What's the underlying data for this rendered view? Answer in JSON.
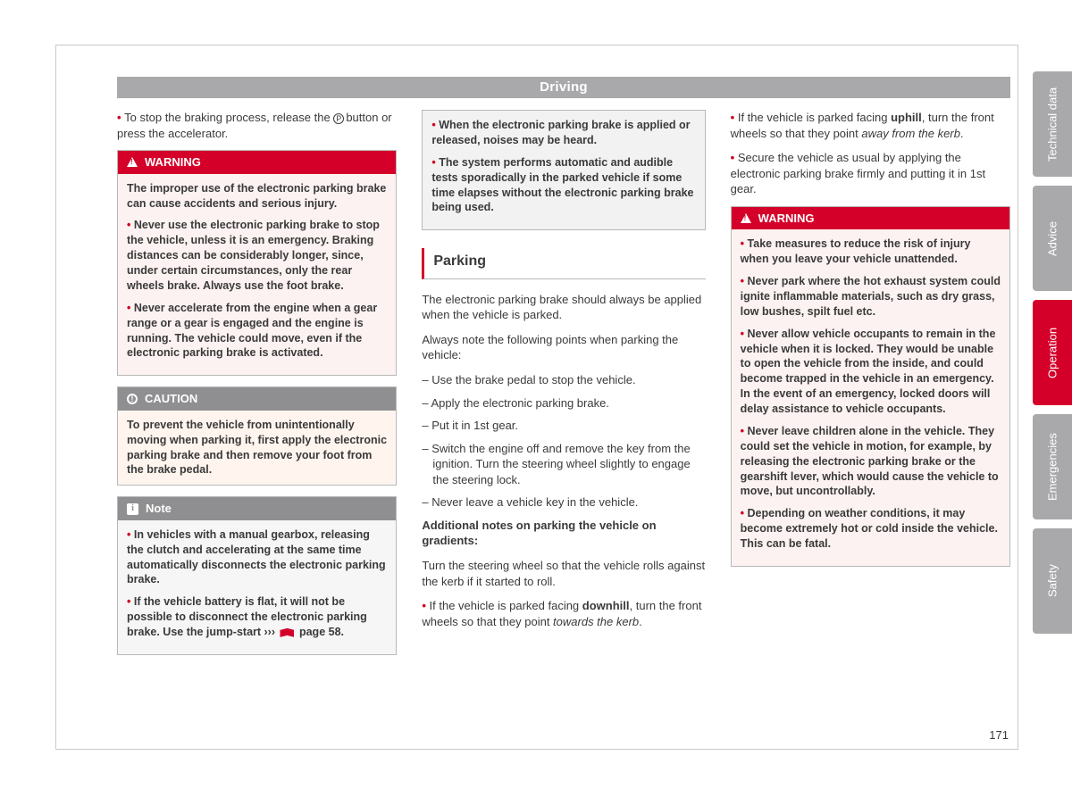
{
  "header": {
    "title": "Driving"
  },
  "page_number": "171",
  "colors": {
    "warn_bg": "#d4002a",
    "gray_bg": "#a9a9ab",
    "bullet": "#d0021b"
  },
  "col1": {
    "intro_bullet": "To stop the braking process, release the ",
    "intro_tail": "button or press the accelerator.",
    "warn": {
      "label": "WARNING",
      "lead": "The improper use of the electronic parking brake can cause accidents and serious injury.",
      "items": [
        "Never use the electronic parking brake to stop the vehicle, unless it is an emergency. Braking distances can be considerably longer, since, under certain circumstances, only the rear wheels brake. Always use the foot brake.",
        "Never accelerate from the engine when a gear range or a gear is engaged and the engine is running. The vehicle could move, even if the electronic parking brake is activated."
      ]
    },
    "caution": {
      "label": "CAUTION",
      "text": "To prevent the vehicle from unintentionally moving when parking it, first apply the electronic parking brake and then remove your foot from the brake pedal."
    },
    "note": {
      "label": "Note",
      "items": [
        "In vehicles with a manual gearbox, releasing the clutch and accelerating at the same time automatically disconnects the electronic parking brake.",
        "If the vehicle battery is flat, it will not be possible to disconnect the electronic parking brake. Use the jump-start ››› "
      ],
      "page_ref": "page 58"
    }
  },
  "col2": {
    "graybox": [
      "When the electronic parking brake is applied or released, noises may be heard.",
      "The system performs automatic and audible tests sporadically in the parked vehicle if some time elapses without the electronic parking brake being used."
    ],
    "section_title": "Parking",
    "p1": "The electronic parking brake should always be applied when the vehicle is parked.",
    "p2": "Always note the following points when parking the vehicle:",
    "steps": [
      "Use the brake pedal to stop the vehicle.",
      "Apply the electronic parking brake.",
      "Put it in 1st gear.",
      "Switch the engine off and remove the key from the ignition. Turn the steering wheel slightly to engage the steering lock.",
      "Never leave a vehicle key in the vehicle."
    ],
    "sub_bold": "Additional notes on parking the vehicle on gradients:",
    "p3": "Turn the steering wheel so that the vehicle rolls against the kerb if it started to roll.",
    "downhill_pre": "If the vehicle is parked facing ",
    "downhill_word": "downhill",
    "downhill_post": ", turn the front wheels so that they point ",
    "downhill_italic": "towards the kerb",
    "dot": "."
  },
  "col3": {
    "uphill_pre": "If the vehicle is parked facing ",
    "uphill_word": "uphill",
    "uphill_post": ", turn the front wheels so that they point ",
    "uphill_italic": "away from the kerb",
    "dot": ".",
    "secure": "Secure the vehicle as usual by applying the electronic parking brake firmly and putting it in 1st gear.",
    "warn": {
      "label": "WARNING",
      "items": [
        "Take measures to reduce the risk of injury when you leave your vehicle unattended.",
        "Never park where the hot exhaust system could ignite inflammable materials, such as dry grass, low bushes, spilt fuel etc.",
        "Never allow vehicle occupants to remain in the vehicle when it is locked. They would be unable to open the vehicle from the inside, and could become trapped in the vehicle in an emergency. In the event of an emergency, locked doors will delay assistance to vehicle occupants.",
        "Never leave children alone in the vehicle. They could set the vehicle in motion, for example, by releasing the electronic parking brake or the gearshift lever, which would cause the vehicle to move, but uncontrollably.",
        "Depending on weather conditions, it may become extremely hot or cold inside the vehicle. This can be fatal."
      ]
    }
  },
  "tabs": [
    {
      "label": "Technical data",
      "active": false
    },
    {
      "label": "Advice",
      "active": false
    },
    {
      "label": "Operation",
      "active": true
    },
    {
      "label": "Emergencies",
      "active": false
    },
    {
      "label": "Safety",
      "active": false
    }
  ]
}
